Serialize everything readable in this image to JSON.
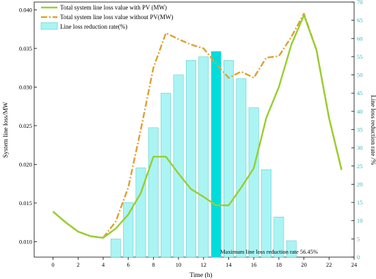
{
  "chart_data": {
    "type": "bar+line",
    "xlabel": "Time (h)",
    "ylabel": "System line loss/MW",
    "y2label": "Line loss reduction rate /%",
    "xlim": [
      -1.5,
      24
    ],
    "ylim": [
      0.008,
      0.041
    ],
    "y2lim": [
      0,
      70
    ],
    "xticks": [
      0,
      2,
      4,
      6,
      8,
      10,
      12,
      14,
      16,
      18,
      20,
      22,
      24
    ],
    "yticks": [
      0.01,
      0.015,
      0.02,
      0.025,
      0.03,
      0.035,
      0.04
    ],
    "ytick_labels": [
      "0.010",
      "0.015",
      "0.020",
      "0.025",
      "0.030",
      "0.035",
      "0.040"
    ],
    "y2ticks": [
      0,
      5,
      10,
      15,
      20,
      25,
      30,
      35,
      40,
      45,
      50,
      55,
      60,
      65,
      70
    ],
    "series": [
      {
        "name": "Total system line loss value with PV (MW)",
        "kind": "line",
        "style": "solid",
        "color": "#9acd32",
        "x": [
          0,
          1,
          2,
          3,
          4,
          5,
          6,
          7,
          8,
          9,
          10,
          11,
          12,
          13,
          14,
          15,
          16,
          17,
          18,
          19,
          20,
          21,
          22,
          23
        ],
        "values": [
          0.0139,
          0.0125,
          0.0113,
          0.0107,
          0.0105,
          0.0117,
          0.0135,
          0.0163,
          0.021,
          0.021,
          0.0188,
          0.0168,
          0.0158,
          0.0147,
          0.0147,
          0.017,
          0.0195,
          0.026,
          0.03,
          0.0355,
          0.0393,
          0.0348,
          0.026,
          0.0193
        ]
      },
      {
        "name": "Total system line loss value without PV(MW)",
        "kind": "line",
        "style": "dashdot",
        "color": "#e0a030",
        "x": [
          0,
          1,
          2,
          3,
          4,
          5,
          6,
          7,
          8,
          9,
          10,
          11,
          12,
          13,
          14,
          15,
          16,
          17,
          18,
          19,
          20,
          21,
          22,
          23
        ],
        "values": [
          0.0139,
          0.0125,
          0.0113,
          0.0107,
          0.0105,
          0.0126,
          0.017,
          0.0245,
          0.0325,
          0.037,
          0.0362,
          0.0355,
          0.035,
          0.033,
          0.0312,
          0.032,
          0.0312,
          0.0338,
          0.034,
          0.0365,
          0.0395,
          0.0348,
          0.026,
          0.0193
        ]
      },
      {
        "name": "Line loss reduction rate(%)",
        "kind": "bar",
        "axis": "right",
        "color": "#aaf4f4",
        "x": [
          5,
          6,
          7,
          8,
          9,
          10,
          11,
          12,
          13,
          14,
          15,
          16,
          17,
          18,
          19
        ],
        "values": [
          5.0,
          15.0,
          24.5,
          35.5,
          45.0,
          50.0,
          54.0,
          55.0,
          56.45,
          54.0,
          49.0,
          41.0,
          24.0,
          11.0,
          4.5
        ]
      }
    ],
    "highlight": {
      "x": 13,
      "color": "#00dcdc"
    },
    "annotation": {
      "text": "Maximum line loss reduction rate 56.45%",
      "x": 13,
      "y2": 1.2
    },
    "legend_position": "top-left"
  }
}
